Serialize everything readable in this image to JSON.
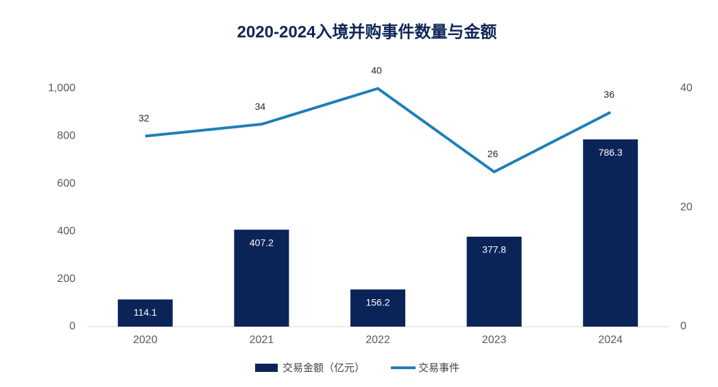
{
  "chart_data": {
    "type": "combo",
    "title": "2020-2024入境并购事件数量与金额",
    "categories": [
      "2020",
      "2021",
      "2022",
      "2023",
      "2024"
    ],
    "series": [
      {
        "name": "交易金额（亿元）",
        "type": "bar",
        "color": "#0b2458",
        "values": [
          114.1,
          407.2,
          156.2,
          377.8,
          786.3
        ]
      },
      {
        "name": "交易事件",
        "type": "line",
        "axis": "y2",
        "color": "#1f7fb6",
        "values": [
          32,
          34,
          40,
          26,
          36
        ]
      }
    ],
    "ylim": [
      0,
      1000
    ],
    "yticks": [
      0,
      200,
      400,
      600,
      800,
      {
        "value": 1000,
        "label": "1,000"
      }
    ],
    "y2lim": [
      0,
      40
    ],
    "y2ticks": [
      0,
      20,
      40
    ],
    "grid": false,
    "legend": "bottom"
  }
}
